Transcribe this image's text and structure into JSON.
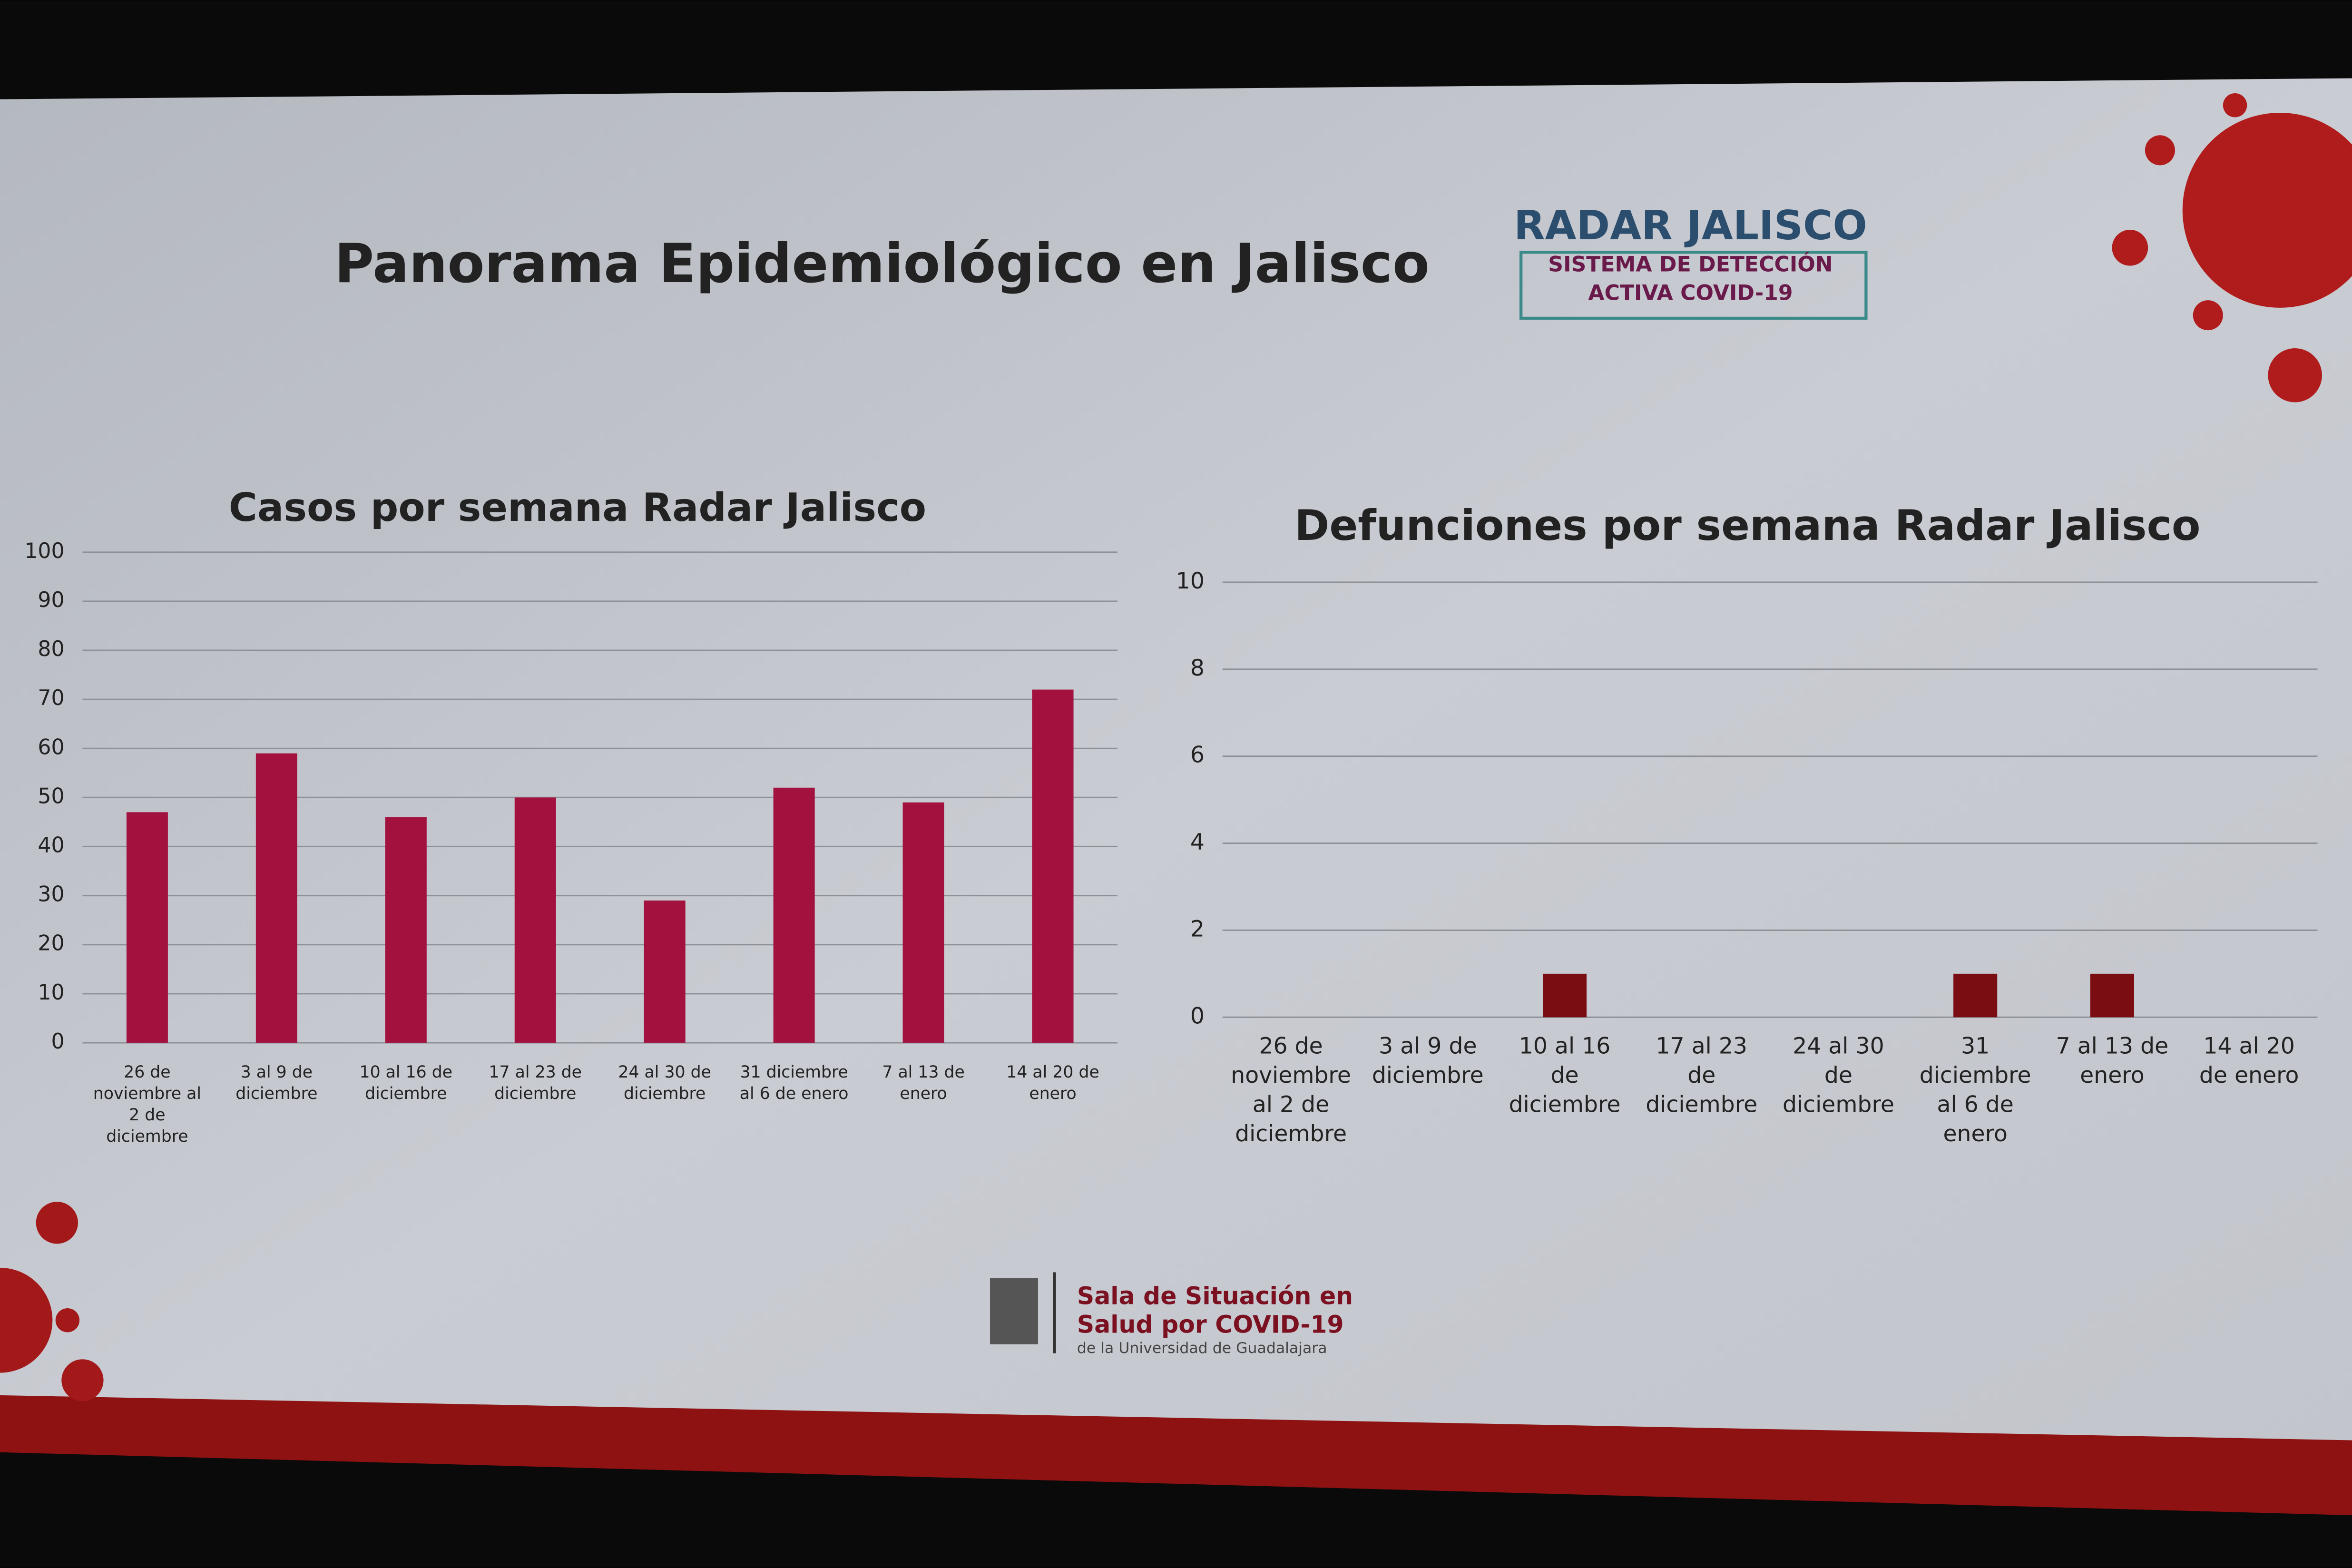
{
  "slide": {
    "title": "Panorama Epidemiológico en Jalisco",
    "logo": {
      "name": "RADAR JALISCO",
      "line1": "SISTEMA DE DETECCIÓN",
      "line2": "ACTIVA COVID-19"
    },
    "footer": {
      "line1": "Sala de Situación en",
      "line2": "Salud por COVID-19",
      "line3": "de la Universidad de Guadalajara"
    }
  },
  "chart_data": [
    {
      "type": "bar",
      "title": "Casos por semana Radar Jalisco",
      "categories": [
        "26 de noviembre al 2 de diciembre",
        "3 al 9 de diciembre",
        "10 al 16 de diciembre",
        "17 al 23 de diciembre",
        "24 al 30 de diciembre",
        "31 diciembre al 6 de enero",
        "7 al 13 de enero",
        "14 al 20 de enero"
      ],
      "values": [
        47,
        59,
        46,
        50,
        29,
        52,
        49,
        72
      ],
      "color": "#a3123f",
      "ylim": [
        0,
        100
      ],
      "yticks": [
        0,
        10,
        20,
        30,
        40,
        50,
        60,
        70,
        80,
        90,
        100
      ],
      "grid": true
    },
    {
      "type": "bar",
      "title": "Defunciones por semana Radar Jalisco",
      "categories": [
        "26 de noviembre al 2 de diciembre",
        "3 al 9 de diciembre",
        "10 al 16 de diciembre",
        "17 al 23 de diciembre",
        "24 al 30 de diciembre",
        "31 diciembre al 6 de enero",
        "7 al 13 de enero",
        "14 al 20 de enero"
      ],
      "values": [
        0,
        0,
        1,
        0,
        0,
        1,
        1,
        0
      ],
      "color": "#7a0d12",
      "ylim": [
        0,
        10
      ],
      "yticks": [
        0,
        2,
        4,
        6,
        8,
        10
      ],
      "grid": true
    }
  ]
}
